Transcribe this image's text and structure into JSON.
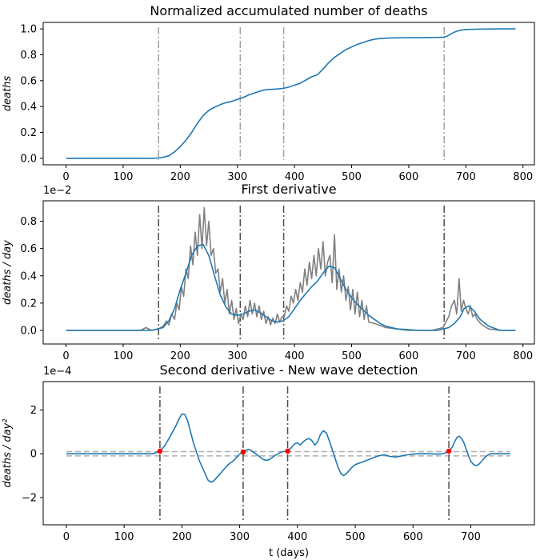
{
  "chart_data": [
    {
      "type": "line",
      "title": "Normalized accumulated number of deaths",
      "ylabel": "deaths",
      "xlabel": "",
      "xlim": [
        -40,
        820
      ],
      "ylim": [
        -0.05,
        1.05
      ],
      "xticks": [
        0,
        100,
        200,
        300,
        400,
        500,
        600,
        700,
        800
      ],
      "yticks": [
        0.0,
        0.2,
        0.4,
        0.6,
        0.8,
        1.0
      ],
      "ytick_labels": [
        "0.0",
        "0.2",
        "0.4",
        "0.6",
        "0.8",
        "1.0"
      ],
      "vlines": [
        162,
        305,
        381,
        662
      ],
      "vline_color": "#a0a0a0",
      "series": [
        {
          "color": "#1f77b4",
          "x": [
            0,
            100,
            150,
            162,
            170,
            180,
            190,
            200,
            210,
            220,
            230,
            240,
            250,
            260,
            270,
            280,
            290,
            300,
            310,
            320,
            330,
            340,
            350,
            360,
            370,
            380,
            390,
            400,
            410,
            420,
            430,
            440,
            450,
            460,
            470,
            480,
            490,
            500,
            510,
            520,
            530,
            540,
            550,
            560,
            570,
            580,
            600,
            620,
            650,
            662,
            670,
            680,
            690,
            700,
            720,
            760,
            787
          ],
          "y": [
            0.0,
            0.0,
            0.0,
            0.003,
            0.008,
            0.02,
            0.05,
            0.09,
            0.14,
            0.2,
            0.27,
            0.33,
            0.37,
            0.395,
            0.415,
            0.43,
            0.44,
            0.455,
            0.47,
            0.49,
            0.505,
            0.52,
            0.53,
            0.533,
            0.536,
            0.54,
            0.55,
            0.565,
            0.58,
            0.605,
            0.63,
            0.645,
            0.69,
            0.74,
            0.78,
            0.81,
            0.84,
            0.86,
            0.88,
            0.895,
            0.91,
            0.92,
            0.925,
            0.928,
            0.93,
            0.931,
            0.932,
            0.932,
            0.934,
            0.936,
            0.95,
            0.975,
            0.99,
            0.995,
            0.998,
            1.0,
            1.0
          ]
        }
      ]
    },
    {
      "type": "line",
      "title": "First derivative",
      "ylabel": "deaths / day",
      "xlabel": "",
      "y_offset_label": "1e−2",
      "xlim": [
        -40,
        820
      ],
      "ylim": [
        -0.1,
        0.95
      ],
      "xticks": [
        0,
        100,
        200,
        300,
        400,
        500,
        600,
        700,
        800
      ],
      "yticks": [
        0.0,
        0.2,
        0.4,
        0.6,
        0.8
      ],
      "ytick_labels": [
        "0.0",
        "0.2",
        "0.4",
        "0.6",
        "0.8"
      ],
      "vlines": [
        162,
        305,
        381,
        662
      ],
      "vline_color": "#4d4d4d",
      "series": [
        {
          "color": "#808080",
          "x": [
            0,
            100,
            130,
            140,
            150,
            162,
            170,
            176,
            180,
            185,
            190,
            194,
            198,
            202,
            206,
            210,
            214,
            218,
            222,
            226,
            230,
            234,
            238,
            242,
            246,
            250,
            254,
            258,
            262,
            266,
            270,
            274,
            278,
            282,
            286,
            290,
            294,
            298,
            302,
            306,
            310,
            314,
            318,
            322,
            326,
            330,
            334,
            338,
            342,
            346,
            350,
            354,
            358,
            362,
            366,
            370,
            374,
            378,
            382,
            386,
            390,
            394,
            398,
            402,
            406,
            410,
            414,
            418,
            422,
            426,
            430,
            434,
            438,
            442,
            446,
            450,
            454,
            458,
            462,
            466,
            470,
            474,
            478,
            482,
            486,
            490,
            494,
            498,
            502,
            506,
            510,
            514,
            518,
            522,
            526,
            530,
            540,
            560,
            600,
            640,
            660,
            665,
            670,
            675,
            680,
            684,
            688,
            692,
            696,
            700,
            704,
            708,
            712,
            716,
            720,
            726,
            732,
            740,
            760,
            787
          ],
          "y": [
            0.0,
            0.0,
            0.0,
            0.02,
            0.0,
            0.01,
            0.03,
            0.07,
            0.04,
            0.12,
            0.08,
            0.2,
            0.15,
            0.32,
            0.25,
            0.45,
            0.38,
            0.62,
            0.48,
            0.72,
            0.55,
            0.85,
            0.6,
            0.9,
            0.62,
            0.8,
            0.55,
            0.6,
            0.42,
            0.45,
            0.28,
            0.38,
            0.2,
            0.3,
            0.12,
            0.22,
            0.08,
            0.16,
            0.05,
            0.12,
            0.08,
            0.18,
            0.1,
            0.22,
            0.12,
            0.2,
            0.1,
            0.18,
            0.08,
            0.14,
            0.05,
            0.1,
            0.04,
            0.09,
            0.05,
            0.12,
            0.06,
            0.1,
            0.1,
            0.18,
            0.14,
            0.25,
            0.2,
            0.3,
            0.22,
            0.35,
            0.28,
            0.45,
            0.33,
            0.5,
            0.38,
            0.55,
            0.4,
            0.6,
            0.45,
            0.65,
            0.4,
            0.5,
            0.55,
            0.35,
            0.7,
            0.3,
            0.45,
            0.28,
            0.4,
            0.22,
            0.32,
            0.15,
            0.3,
            0.12,
            0.28,
            0.1,
            0.22,
            0.08,
            0.18,
            0.06,
            0.05,
            0.02,
            0.0,
            0.0,
            0.02,
            0.06,
            0.1,
            0.18,
            0.22,
            0.12,
            0.38,
            0.14,
            0.22,
            0.16,
            0.12,
            0.18,
            0.1,
            0.12,
            0.08,
            0.05,
            0.03,
            0.01,
            0.0,
            0.0
          ]
        },
        {
          "color": "#1f77b4",
          "x": [
            0,
            100,
            150,
            160,
            170,
            180,
            190,
            200,
            210,
            220,
            230,
            240,
            250,
            260,
            270,
            280,
            290,
            300,
            310,
            320,
            330,
            340,
            350,
            360,
            370,
            380,
            390,
            400,
            410,
            420,
            430,
            440,
            450,
            460,
            470,
            480,
            490,
            500,
            510,
            520,
            530,
            540,
            550,
            560,
            580,
            620,
            650,
            660,
            670,
            680,
            690,
            697,
            705,
            715,
            725,
            740,
            760,
            787
          ],
          "y": [
            0.0,
            0.0,
            0.0,
            0.01,
            0.02,
            0.07,
            0.16,
            0.3,
            0.42,
            0.55,
            0.62,
            0.63,
            0.55,
            0.4,
            0.26,
            0.17,
            0.12,
            0.11,
            0.12,
            0.14,
            0.15,
            0.13,
            0.1,
            0.07,
            0.06,
            0.07,
            0.1,
            0.16,
            0.22,
            0.27,
            0.32,
            0.36,
            0.42,
            0.47,
            0.46,
            0.38,
            0.3,
            0.24,
            0.19,
            0.15,
            0.11,
            0.08,
            0.05,
            0.03,
            0.01,
            0.0,
            0.0,
            0.01,
            0.02,
            0.05,
            0.1,
            0.16,
            0.18,
            0.14,
            0.08,
            0.03,
            0.0,
            0.0
          ]
        }
      ]
    },
    {
      "type": "line",
      "title": "Second derivative - New wave detection",
      "ylabel": "deaths / day²",
      "xlabel": "t (days)",
      "y_offset_label": "1e−4",
      "xlim": [
        -40,
        810
      ],
      "ylim": [
        -3.25,
        3.3
      ],
      "xticks": [
        0,
        100,
        200,
        300,
        400,
        500,
        600,
        700
      ],
      "yticks": [
        -2,
        0,
        2
      ],
      "ytick_labels": [
        "−2",
        "0",
        "2"
      ],
      "vlines": [
        162,
        306,
        383,
        662
      ],
      "vline_color": "#4d4d4d",
      "hlines": [
        0.1,
        -0.1
      ],
      "hline_color": "#b0b0b0",
      "markers": {
        "color": "#ff0000",
        "x": [
          162,
          306,
          383,
          662
        ],
        "y": [
          0.12,
          0.08,
          0.12,
          0.12
        ]
      },
      "series": [
        {
          "color": "#1f77b4",
          "x": [
            0,
            100,
            150,
            162,
            170,
            180,
            190,
            195,
            200,
            205,
            210,
            215,
            220,
            225,
            230,
            235,
            240,
            245,
            250,
            255,
            260,
            265,
            270,
            275,
            280,
            285,
            290,
            295,
            300,
            306,
            310,
            315,
            320,
            325,
            330,
            335,
            340,
            345,
            350,
            355,
            360,
            365,
            370,
            375,
            383,
            390,
            395,
            400,
            405,
            410,
            415,
            420,
            425,
            430,
            435,
            440,
            445,
            450,
            455,
            460,
            465,
            470,
            475,
            480,
            485,
            490,
            495,
            500,
            510,
            520,
            530,
            540,
            550,
            560,
            570,
            580,
            590,
            600,
            610,
            620,
            630,
            640,
            650,
            655,
            662,
            668,
            672,
            676,
            680,
            684,
            688,
            692,
            696,
            700,
            705,
            710,
            715,
            720,
            725,
            730,
            735,
            740,
            750,
            760,
            768
          ],
          "y": [
            0.0,
            0.0,
            0.0,
            0.12,
            0.35,
            0.8,
            1.3,
            1.6,
            1.82,
            1.8,
            1.5,
            1.0,
            0.5,
            0.1,
            -0.3,
            -0.6,
            -0.9,
            -1.2,
            -1.3,
            -1.25,
            -1.1,
            -0.95,
            -0.8,
            -0.65,
            -0.5,
            -0.4,
            -0.3,
            -0.15,
            -0.02,
            0.08,
            0.15,
            0.2,
            0.15,
            0.05,
            -0.05,
            -0.15,
            -0.25,
            -0.3,
            -0.28,
            -0.2,
            -0.1,
            -0.02,
            0.05,
            0.1,
            0.12,
            0.3,
            0.45,
            0.5,
            0.4,
            0.55,
            0.65,
            0.7,
            0.6,
            0.4,
            0.55,
            0.9,
            1.05,
            0.95,
            0.6,
            0.2,
            -0.2,
            -0.6,
            -0.9,
            -1.0,
            -0.9,
            -0.75,
            -0.6,
            -0.5,
            -0.4,
            -0.3,
            -0.2,
            -0.1,
            -0.05,
            -0.12,
            -0.15,
            -0.1,
            -0.05,
            -0.02,
            0.0,
            0.0,
            0.0,
            -0.02,
            0.0,
            0.02,
            0.12,
            0.3,
            0.55,
            0.75,
            0.8,
            0.7,
            0.5,
            0.2,
            -0.1,
            -0.35,
            -0.5,
            -0.55,
            -0.45,
            -0.3,
            -0.15,
            -0.05,
            0.0,
            0.0,
            0.0,
            0.0,
            0.0
          ]
        }
      ]
    }
  ]
}
